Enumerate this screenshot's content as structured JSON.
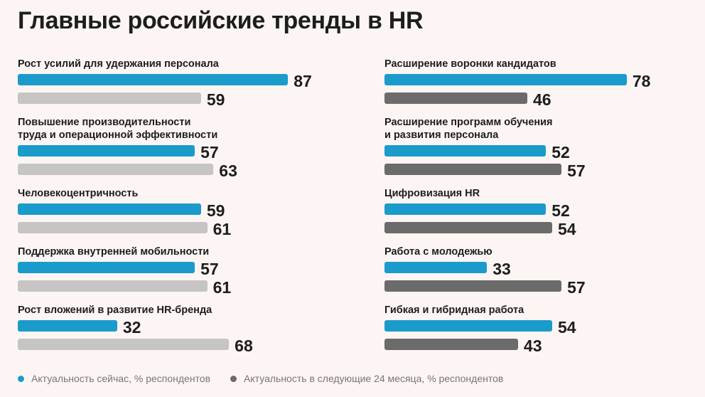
{
  "title": "Главные российские тренды в HR",
  "chart_data": [
    {
      "type": "bar",
      "orientation": "horizontal",
      "xlim": [
        0,
        100
      ],
      "categories": [
        "Рост усилий для удержания персонала",
        "Повышение производительности\nтруда и операционной эффективности",
        "Человекоцентричность",
        "Поддержка внутренней мобильности",
        "Рост вложений в развитие HR-бренда"
      ],
      "series": [
        {
          "name": "Актуальность сейчас, % респондентов",
          "color": "#1b9bcb",
          "values": [
            87,
            57,
            59,
            57,
            32
          ]
        },
        {
          "name": "Актуальность в следующие 24 месяца, % респондентов",
          "color": "#c6c5c4",
          "values": [
            59,
            63,
            61,
            61,
            68
          ]
        }
      ]
    },
    {
      "type": "bar",
      "orientation": "horizontal",
      "xlim": [
        0,
        100
      ],
      "categories": [
        "Расширение воронки кандидатов",
        "Расширение программ обучения\nи развития персонала",
        "Цифровизация HR",
        "Работа с молодежью",
        "Гибкая и гибридная работа"
      ],
      "series": [
        {
          "name": "Актуальность сейчас, % респондентов",
          "color": "#1b9bcb",
          "values": [
            78,
            52,
            52,
            33,
            54
          ]
        },
        {
          "name": "Актуальность в следующие 24 месяца, % респондентов",
          "color": "#6c6b6b",
          "values": [
            46,
            57,
            54,
            57,
            43
          ]
        }
      ]
    }
  ]
}
